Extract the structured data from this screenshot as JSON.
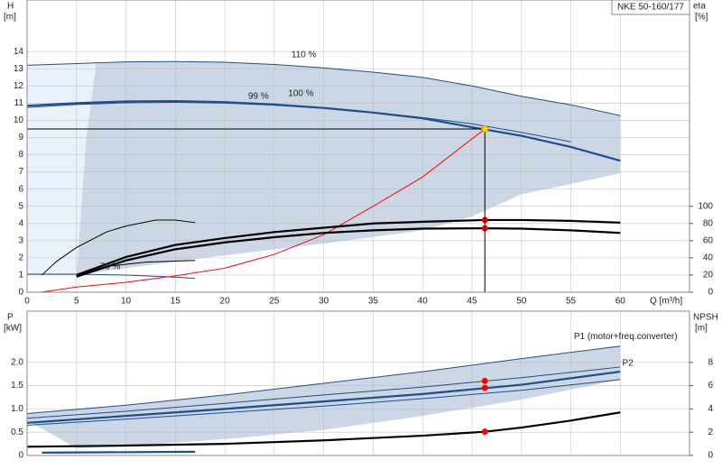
{
  "chart_data": [
    {
      "type": "line",
      "title": "NKE 50-160/177",
      "ylabel": "H",
      "yunit": "[m]",
      "y2label": "eta",
      "y2unit": "[%]",
      "xlabel": "Q [m³/h]",
      "xlim": [
        0,
        67
      ],
      "xticks": [
        0,
        5,
        10,
        15,
        20,
        25,
        30,
        35,
        40,
        45,
        50,
        55,
        60
      ],
      "ylim": [
        0,
        17
      ],
      "yticks": [
        0,
        1,
        2,
        3,
        4,
        5,
        6,
        7,
        8,
        9,
        10,
        11,
        12,
        13,
        14
      ],
      "y2lim": [
        0,
        340
      ],
      "y2ticks": [
        0,
        20,
        40,
        60,
        80,
        100
      ],
      "grid": true,
      "series": [
        {
          "type": "area",
          "color": "#e9f2fb",
          "x": [
            0,
            0,
            4,
            7,
            6,
            5.5,
            5
          ],
          "values": [
            1.05,
            13.2,
            13.3,
            13.3,
            9,
            5,
            1.0
          ]
        },
        {
          "type": "area",
          "color": "#cbd7e4",
          "x": [
            5,
            5.5,
            6,
            7,
            10,
            15,
            20,
            25,
            30,
            35,
            40,
            45,
            50,
            55,
            60,
            60,
            55,
            50,
            45,
            40,
            30,
            20,
            10,
            5
          ],
          "values": [
            1.0,
            5,
            9,
            13.3,
            13.4,
            13.42,
            13.38,
            13.25,
            13.05,
            12.8,
            12.5,
            12.0,
            11.4,
            10.9,
            10.28,
            6.92,
            6.3,
            5.7,
            4.4,
            3.6,
            2.83,
            2.15,
            1.4,
            1.0
          ]
        },
        {
          "type": "line",
          "color": "#1f4e8c",
          "style": "thin",
          "x": [
            0,
            5,
            10,
            15,
            20,
            25,
            30,
            35,
            40,
            45,
            50,
            55,
            60
          ],
          "values": [
            13.2,
            13.3,
            13.4,
            13.42,
            13.38,
            13.25,
            13.05,
            12.8,
            12.5,
            12.0,
            11.4,
            10.9,
            10.28
          ]
        },
        {
          "type": "line",
          "color": "#1f4e8c",
          "style": "thin",
          "x": [
            0,
            5,
            10,
            15,
            20,
            25,
            30,
            35,
            40,
            45,
            50,
            55
          ],
          "values": [
            10.75,
            10.92,
            11.02,
            11.05,
            11.0,
            10.88,
            10.7,
            10.46,
            10.16,
            9.8,
            9.3,
            8.75
          ]
        },
        {
          "type": "line",
          "color": "#1f4e8c",
          "style": "thick",
          "x": [
            0,
            5,
            10,
            15,
            20,
            25,
            30,
            35,
            40,
            45,
            50,
            55,
            60
          ],
          "values": [
            10.85,
            11.0,
            11.1,
            11.12,
            11.06,
            10.92,
            10.72,
            10.45,
            10.12,
            9.6,
            9.1,
            8.45,
            7.65
          ]
        },
        {
          "type": "line",
          "color": "#1f4e8c",
          "style": "thin",
          "x": [
            0,
            5,
            10,
            15,
            17
          ],
          "values": [
            1.05,
            1.05,
            1.0,
            0.88,
            0.8
          ]
        },
        {
          "type": "line",
          "color": "#ff0000",
          "style": "thin",
          "x": [
            1.4,
            5,
            10,
            15,
            20,
            25,
            30,
            35,
            40,
            46.3
          ],
          "values": [
            0,
            0.3,
            0.58,
            0.95,
            1.4,
            2.2,
            3.35,
            5.0,
            6.7,
            9.5
          ]
        },
        {
          "type": "line",
          "color": "#000000",
          "style": "thick",
          "axis": "y2",
          "x": [
            5,
            10,
            15,
            20,
            25,
            30,
            35,
            40,
            46.3,
            50,
            55,
            60
          ],
          "values": [
            20,
            41,
            55,
            63,
            70,
            75,
            80,
            82,
            84,
            84,
            83,
            81
          ]
        },
        {
          "type": "line",
          "color": "#000000",
          "style": "thick",
          "axis": "y2",
          "x": [
            5,
            10,
            15,
            20,
            25,
            30,
            35,
            40,
            46.3,
            50,
            55,
            60
          ],
          "values": [
            18,
            37,
            50,
            58,
            64,
            69,
            72,
            74,
            74.4,
            74,
            72,
            69
          ]
        },
        {
          "type": "line",
          "color": "#000000",
          "style": "thin",
          "axis": "y2",
          "x": [
            1.5,
            3,
            5,
            8,
            10,
            13,
            15,
            17
          ],
          "values": [
            20,
            36,
            52,
            70,
            77,
            84,
            84,
            81
          ]
        },
        {
          "type": "line",
          "color": "#000000",
          "style": "thin",
          "axis": "y2",
          "x": [
            5,
            8,
            12,
            17
          ],
          "values": [
            20,
            30,
            35,
            37
          ]
        },
        {
          "type": "point",
          "color": "#ff0000",
          "axis": "y2",
          "x": [
            46.3
          ],
          "values": [
            84
          ]
        },
        {
          "type": "point",
          "color": "#ff0000",
          "axis": "y2",
          "x": [
            46.3
          ],
          "values": [
            74.4
          ]
        },
        {
          "type": "point",
          "color": "#ffd700",
          "guides": true,
          "x": [
            46.3
          ],
          "values": [
            9.5
          ]
        }
      ],
      "annotations": [
        {
          "text": "110 %",
          "x": 28,
          "y": 13.8
        },
        {
          "text": "99 %",
          "x": 23.4,
          "y": 11.4
        },
        {
          "text": "100 %",
          "x": 27.7,
          "y": 11.55
        },
        {
          "text": "70 %",
          "x": 8.4,
          "y": 1.47
        }
      ]
    },
    {
      "type": "line",
      "ylabel": "P",
      "yunit": "[kW]",
      "y2label": "NPSH",
      "y2unit": "[m]",
      "xlim": [
        0,
        67
      ],
      "xticks": [
        0,
        5,
        10,
        15,
        20,
        25,
        30,
        35,
        40,
        45,
        50,
        55,
        60
      ],
      "xtick_labels": false,
      "ylim": [
        0,
        3.1
      ],
      "yticks": [
        0,
        0.5,
        {
          "value": 1,
          "label": "1.0"
        },
        1.5,
        {
          "value": 2,
          "label": "2.0"
        }
      ],
      "y2lim": [
        0,
        12.4
      ],
      "y2ticks": [
        0,
        2,
        4,
        6,
        8
      ],
      "grid": true,
      "series": [
        {
          "type": "area",
          "color": "#cbd7e4",
          "x": [
            0,
            10,
            20,
            30,
            40,
            50,
            60,
            60,
            50,
            40,
            30,
            20,
            10,
            5,
            3,
            0
          ],
          "values": [
            0.9,
            1.08,
            1.3,
            1.55,
            1.8,
            2.08,
            2.35,
            1.63,
            1.2,
            0.85,
            0.55,
            0.35,
            0.2,
            0.15,
            0.4,
            0.75
          ]
        },
        {
          "type": "line",
          "color": "#1f4e8c",
          "style": "thin",
          "x": [
            0,
            10,
            20,
            30,
            40,
            50,
            60
          ],
          "values": [
            0.9,
            1.08,
            1.3,
            1.55,
            1.8,
            2.08,
            2.35
          ]
        },
        {
          "type": "line",
          "color": "#1f4e8c",
          "style": "thin",
          "x": [
            0,
            10,
            20,
            30,
            40,
            50,
            60
          ],
          "values": [
            0.8,
            0.95,
            1.12,
            1.3,
            1.47,
            1.67,
            1.9
          ]
        },
        {
          "type": "line",
          "color": "#1f4e8c",
          "style": "thick",
          "x": [
            0,
            10,
            20,
            30,
            40,
            50,
            60
          ],
          "values": [
            0.7,
            0.85,
            1.0,
            1.16,
            1.32,
            1.52,
            1.8
          ]
        },
        {
          "type": "line",
          "color": "#1f4e8c",
          "style": "thin",
          "x": [
            0,
            10,
            20,
            30,
            40,
            50,
            60
          ],
          "values": [
            0.65,
            0.78,
            0.92,
            1.06,
            1.22,
            1.4,
            1.63
          ]
        },
        {
          "type": "line",
          "color": "#1f4e8c",
          "style": "thick",
          "x": [
            1.5,
            17
          ],
          "values": [
            0.06,
            0.08
          ]
        },
        {
          "type": "line",
          "color": "#000000",
          "style": "thick",
          "axis": "y2",
          "x": [
            0,
            10,
            20,
            30,
            40,
            46.3,
            50,
            55,
            60
          ],
          "values": [
            0.75,
            0.85,
            1.0,
            1.3,
            1.7,
            2.04,
            2.4,
            3.0,
            3.7
          ]
        },
        {
          "type": "point",
          "color": "#ff0000",
          "x": [
            46.3
          ],
          "values": [
            1.6
          ]
        },
        {
          "type": "point",
          "color": "#ff0000",
          "x": [
            46.3
          ],
          "values": [
            1.45
          ]
        },
        {
          "type": "point",
          "color": "#ff0000",
          "axis": "y2",
          "x": [
            46.3
          ],
          "values": [
            2.04
          ]
        }
      ],
      "annotations": [
        {
          "text": "P1 (motor+freq.converter)",
          "x": 55.3,
          "y": 2.55
        },
        {
          "text": "P2",
          "x": 60.2,
          "y": 1.98
        }
      ]
    }
  ]
}
